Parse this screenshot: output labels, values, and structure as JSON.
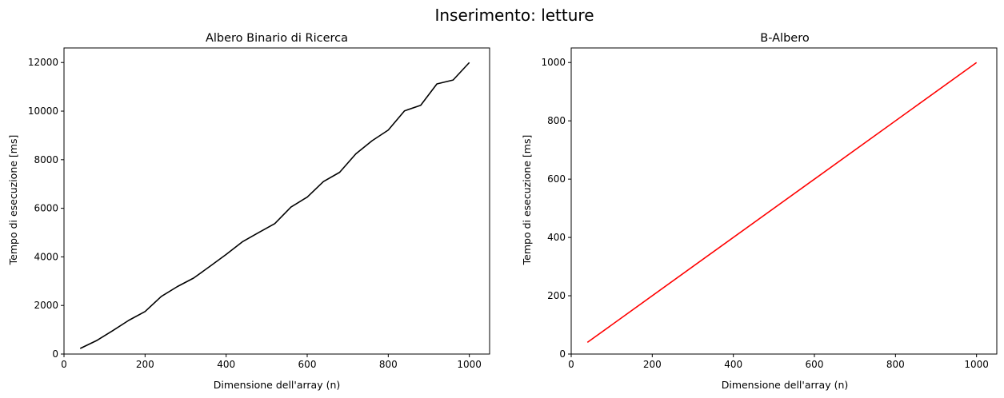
{
  "figure": {
    "suptitle": "Inserimento: letture"
  },
  "chart_data": [
    {
      "type": "line",
      "title": "Albero Binario di Ricerca",
      "xlabel": "Dimensione dell'array (n)",
      "ylabel": "Tempo di esecuzione [ms]",
      "xlim": [
        0,
        1050
      ],
      "ylim": [
        0,
        12600
      ],
      "xticks": [
        0,
        200,
        400,
        600,
        800,
        1000
      ],
      "yticks": [
        0,
        2000,
        4000,
        6000,
        8000,
        10000,
        12000
      ],
      "grid": false,
      "series": [
        {
          "color": "#000000",
          "x": [
            40,
            80,
            120,
            160,
            200,
            240,
            280,
            320,
            360,
            400,
            440,
            480,
            520,
            560,
            600,
            640,
            680,
            720,
            760,
            800,
            840,
            880,
            920,
            960,
            1000
          ],
          "y": [
            230,
            550,
            960,
            1390,
            1750,
            2370,
            2780,
            3130,
            3610,
            4100,
            4620,
            5000,
            5370,
            6050,
            6460,
            7100,
            7480,
            8240,
            8780,
            9220,
            10010,
            10240,
            11120,
            11280,
            12000
          ]
        }
      ]
    },
    {
      "type": "line",
      "title": "B-Albero",
      "xlabel": "Dimensione dell'array (n)",
      "ylabel": "Tempo di esecuzione [ms]",
      "xlim": [
        0,
        1050
      ],
      "ylim": [
        0,
        1050
      ],
      "xticks": [
        0,
        200,
        400,
        600,
        800,
        1000
      ],
      "yticks": [
        0,
        200,
        400,
        600,
        800,
        1000
      ],
      "grid": false,
      "series": [
        {
          "color": "#ff0000",
          "x": [
            40,
            1000
          ],
          "y": [
            40,
            1000
          ]
        }
      ]
    }
  ]
}
